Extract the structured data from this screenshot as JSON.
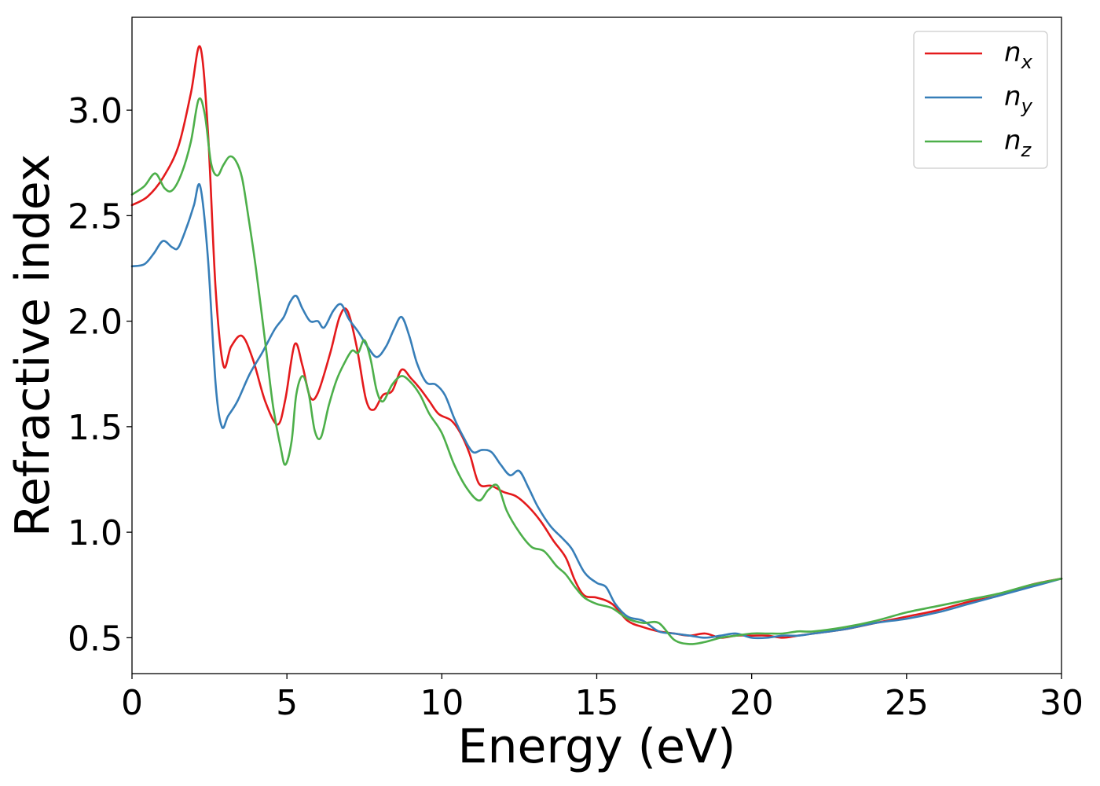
{
  "chart_data": {
    "type": "line",
    "xlabel": "Energy (eV)",
    "ylabel": "Refractive index",
    "xlim": [
      0,
      30
    ],
    "ylim": [
      0.33,
      3.44
    ],
    "xticks": [
      "0",
      "5",
      "10",
      "15",
      "20",
      "25",
      "30"
    ],
    "yticks": [
      "0.5",
      "1.0",
      "1.5",
      "2.0",
      "2.5",
      "3.0"
    ],
    "grid": false,
    "legend_position": "top-right",
    "series": [
      {
        "name": "n",
        "subscript": "x",
        "color": "#e41a1c",
        "x": [
          0,
          0.5,
          1.0,
          1.5,
          1.9,
          2.2,
          2.45,
          2.7,
          2.95,
          3.2,
          3.55,
          3.9,
          4.3,
          4.7,
          4.95,
          5.25,
          5.5,
          5.75,
          6.0,
          6.4,
          6.7,
          6.95,
          7.25,
          7.55,
          7.8,
          8.1,
          8.4,
          8.7,
          9.0,
          9.3,
          9.6,
          9.9,
          10.3,
          10.6,
          10.9,
          11.2,
          11.6,
          12.0,
          12.4,
          12.8,
          13.2,
          13.6,
          14.0,
          14.3,
          14.6,
          15.0,
          15.5,
          16.0,
          16.5,
          17.0,
          17.5,
          18.0,
          18.5,
          19.0,
          19.5,
          20.0,
          20.5,
          21.0,
          21.5,
          22.0,
          23.0,
          24.0,
          25.0,
          26.0,
          27.0,
          28.0,
          29.0,
          30.0
        ],
        "y": [
          2.55,
          2.59,
          2.68,
          2.83,
          3.08,
          3.3,
          2.9,
          2.15,
          1.79,
          1.88,
          1.93,
          1.82,
          1.62,
          1.51,
          1.63,
          1.89,
          1.79,
          1.64,
          1.66,
          1.85,
          2.02,
          2.05,
          1.88,
          1.63,
          1.58,
          1.65,
          1.67,
          1.77,
          1.73,
          1.68,
          1.62,
          1.56,
          1.53,
          1.47,
          1.37,
          1.23,
          1.22,
          1.19,
          1.17,
          1.12,
          1.05,
          0.96,
          0.88,
          0.77,
          0.7,
          0.69,
          0.66,
          0.58,
          0.55,
          0.53,
          0.52,
          0.51,
          0.52,
          0.5,
          0.51,
          0.51,
          0.51,
          0.5,
          0.51,
          0.52,
          0.54,
          0.57,
          0.6,
          0.63,
          0.67,
          0.7,
          0.75,
          0.78
        ]
      },
      {
        "name": "n",
        "subscript": "y",
        "color": "#377eb8",
        "x": [
          0,
          0.4,
          0.7,
          1.0,
          1.3,
          1.5,
          1.8,
          2.0,
          2.2,
          2.45,
          2.7,
          2.9,
          3.1,
          3.4,
          3.8,
          4.2,
          4.6,
          4.9,
          5.1,
          5.3,
          5.5,
          5.75,
          6.0,
          6.2,
          6.5,
          6.75,
          7.0,
          7.3,
          7.6,
          7.9,
          8.2,
          8.45,
          8.7,
          8.95,
          9.2,
          9.5,
          9.8,
          10.1,
          10.4,
          10.7,
          11.0,
          11.3,
          11.6,
          11.9,
          12.2,
          12.5,
          12.8,
          13.1,
          13.5,
          13.9,
          14.2,
          14.6,
          15.0,
          15.3,
          15.6,
          16.0,
          16.5,
          17.0,
          17.5,
          18.0,
          18.5,
          19.0,
          19.5,
          20.0,
          20.5,
          21.0,
          21.5,
          22.0,
          23.0,
          24.0,
          25.0,
          26.0,
          27.0,
          28.0,
          29.0,
          30.0
        ],
        "y": [
          2.26,
          2.27,
          2.32,
          2.38,
          2.35,
          2.35,
          2.46,
          2.55,
          2.64,
          2.3,
          1.7,
          1.5,
          1.55,
          1.62,
          1.75,
          1.85,
          1.96,
          2.02,
          2.09,
          2.12,
          2.06,
          2.0,
          2.0,
          1.97,
          2.05,
          2.08,
          2.01,
          1.95,
          1.88,
          1.83,
          1.88,
          1.96,
          2.02,
          1.93,
          1.8,
          1.71,
          1.7,
          1.65,
          1.54,
          1.45,
          1.38,
          1.39,
          1.38,
          1.32,
          1.27,
          1.29,
          1.21,
          1.12,
          1.03,
          0.97,
          0.92,
          0.81,
          0.76,
          0.74,
          0.66,
          0.6,
          0.58,
          0.53,
          0.52,
          0.51,
          0.5,
          0.51,
          0.52,
          0.5,
          0.5,
          0.51,
          0.51,
          0.52,
          0.54,
          0.57,
          0.59,
          0.62,
          0.66,
          0.7,
          0.74,
          0.78
        ]
      },
      {
        "name": "n",
        "subscript": "z",
        "color": "#4daf4a",
        "x": [
          0,
          0.4,
          0.75,
          1.05,
          1.3,
          1.6,
          1.9,
          2.15,
          2.35,
          2.55,
          2.75,
          2.95,
          3.15,
          3.35,
          3.55,
          3.75,
          4.0,
          4.3,
          4.55,
          4.8,
          4.95,
          5.15,
          5.3,
          5.5,
          5.7,
          5.9,
          6.1,
          6.35,
          6.6,
          6.85,
          7.1,
          7.3,
          7.5,
          7.7,
          7.9,
          8.1,
          8.4,
          8.7,
          9.0,
          9.3,
          9.6,
          10.0,
          10.4,
          10.8,
          11.2,
          11.5,
          11.8,
          12.1,
          12.5,
          12.9,
          13.3,
          13.7,
          14.0,
          14.3,
          14.6,
          15.0,
          15.5,
          16.0,
          16.5,
          17.0,
          17.5,
          18.0,
          18.5,
          19.0,
          19.5,
          20.0,
          20.5,
          21.0,
          21.5,
          22.0,
          23.0,
          24.0,
          25.0,
          26.0,
          27.0,
          28.0,
          29.0,
          30.0
        ],
        "y": [
          2.6,
          2.64,
          2.7,
          2.63,
          2.62,
          2.7,
          2.85,
          3.05,
          2.98,
          2.75,
          2.69,
          2.74,
          2.78,
          2.76,
          2.68,
          2.5,
          2.25,
          1.9,
          1.6,
          1.4,
          1.32,
          1.43,
          1.65,
          1.74,
          1.66,
          1.48,
          1.45,
          1.6,
          1.72,
          1.8,
          1.86,
          1.85,
          1.91,
          1.82,
          1.67,
          1.62,
          1.7,
          1.74,
          1.71,
          1.65,
          1.56,
          1.47,
          1.32,
          1.21,
          1.15,
          1.2,
          1.22,
          1.1,
          1.0,
          0.93,
          0.91,
          0.84,
          0.8,
          0.74,
          0.69,
          0.66,
          0.64,
          0.59,
          0.57,
          0.57,
          0.49,
          0.47,
          0.48,
          0.5,
          0.51,
          0.52,
          0.52,
          0.52,
          0.53,
          0.53,
          0.55,
          0.58,
          0.62,
          0.65,
          0.68,
          0.71,
          0.75,
          0.78
        ]
      }
    ]
  }
}
